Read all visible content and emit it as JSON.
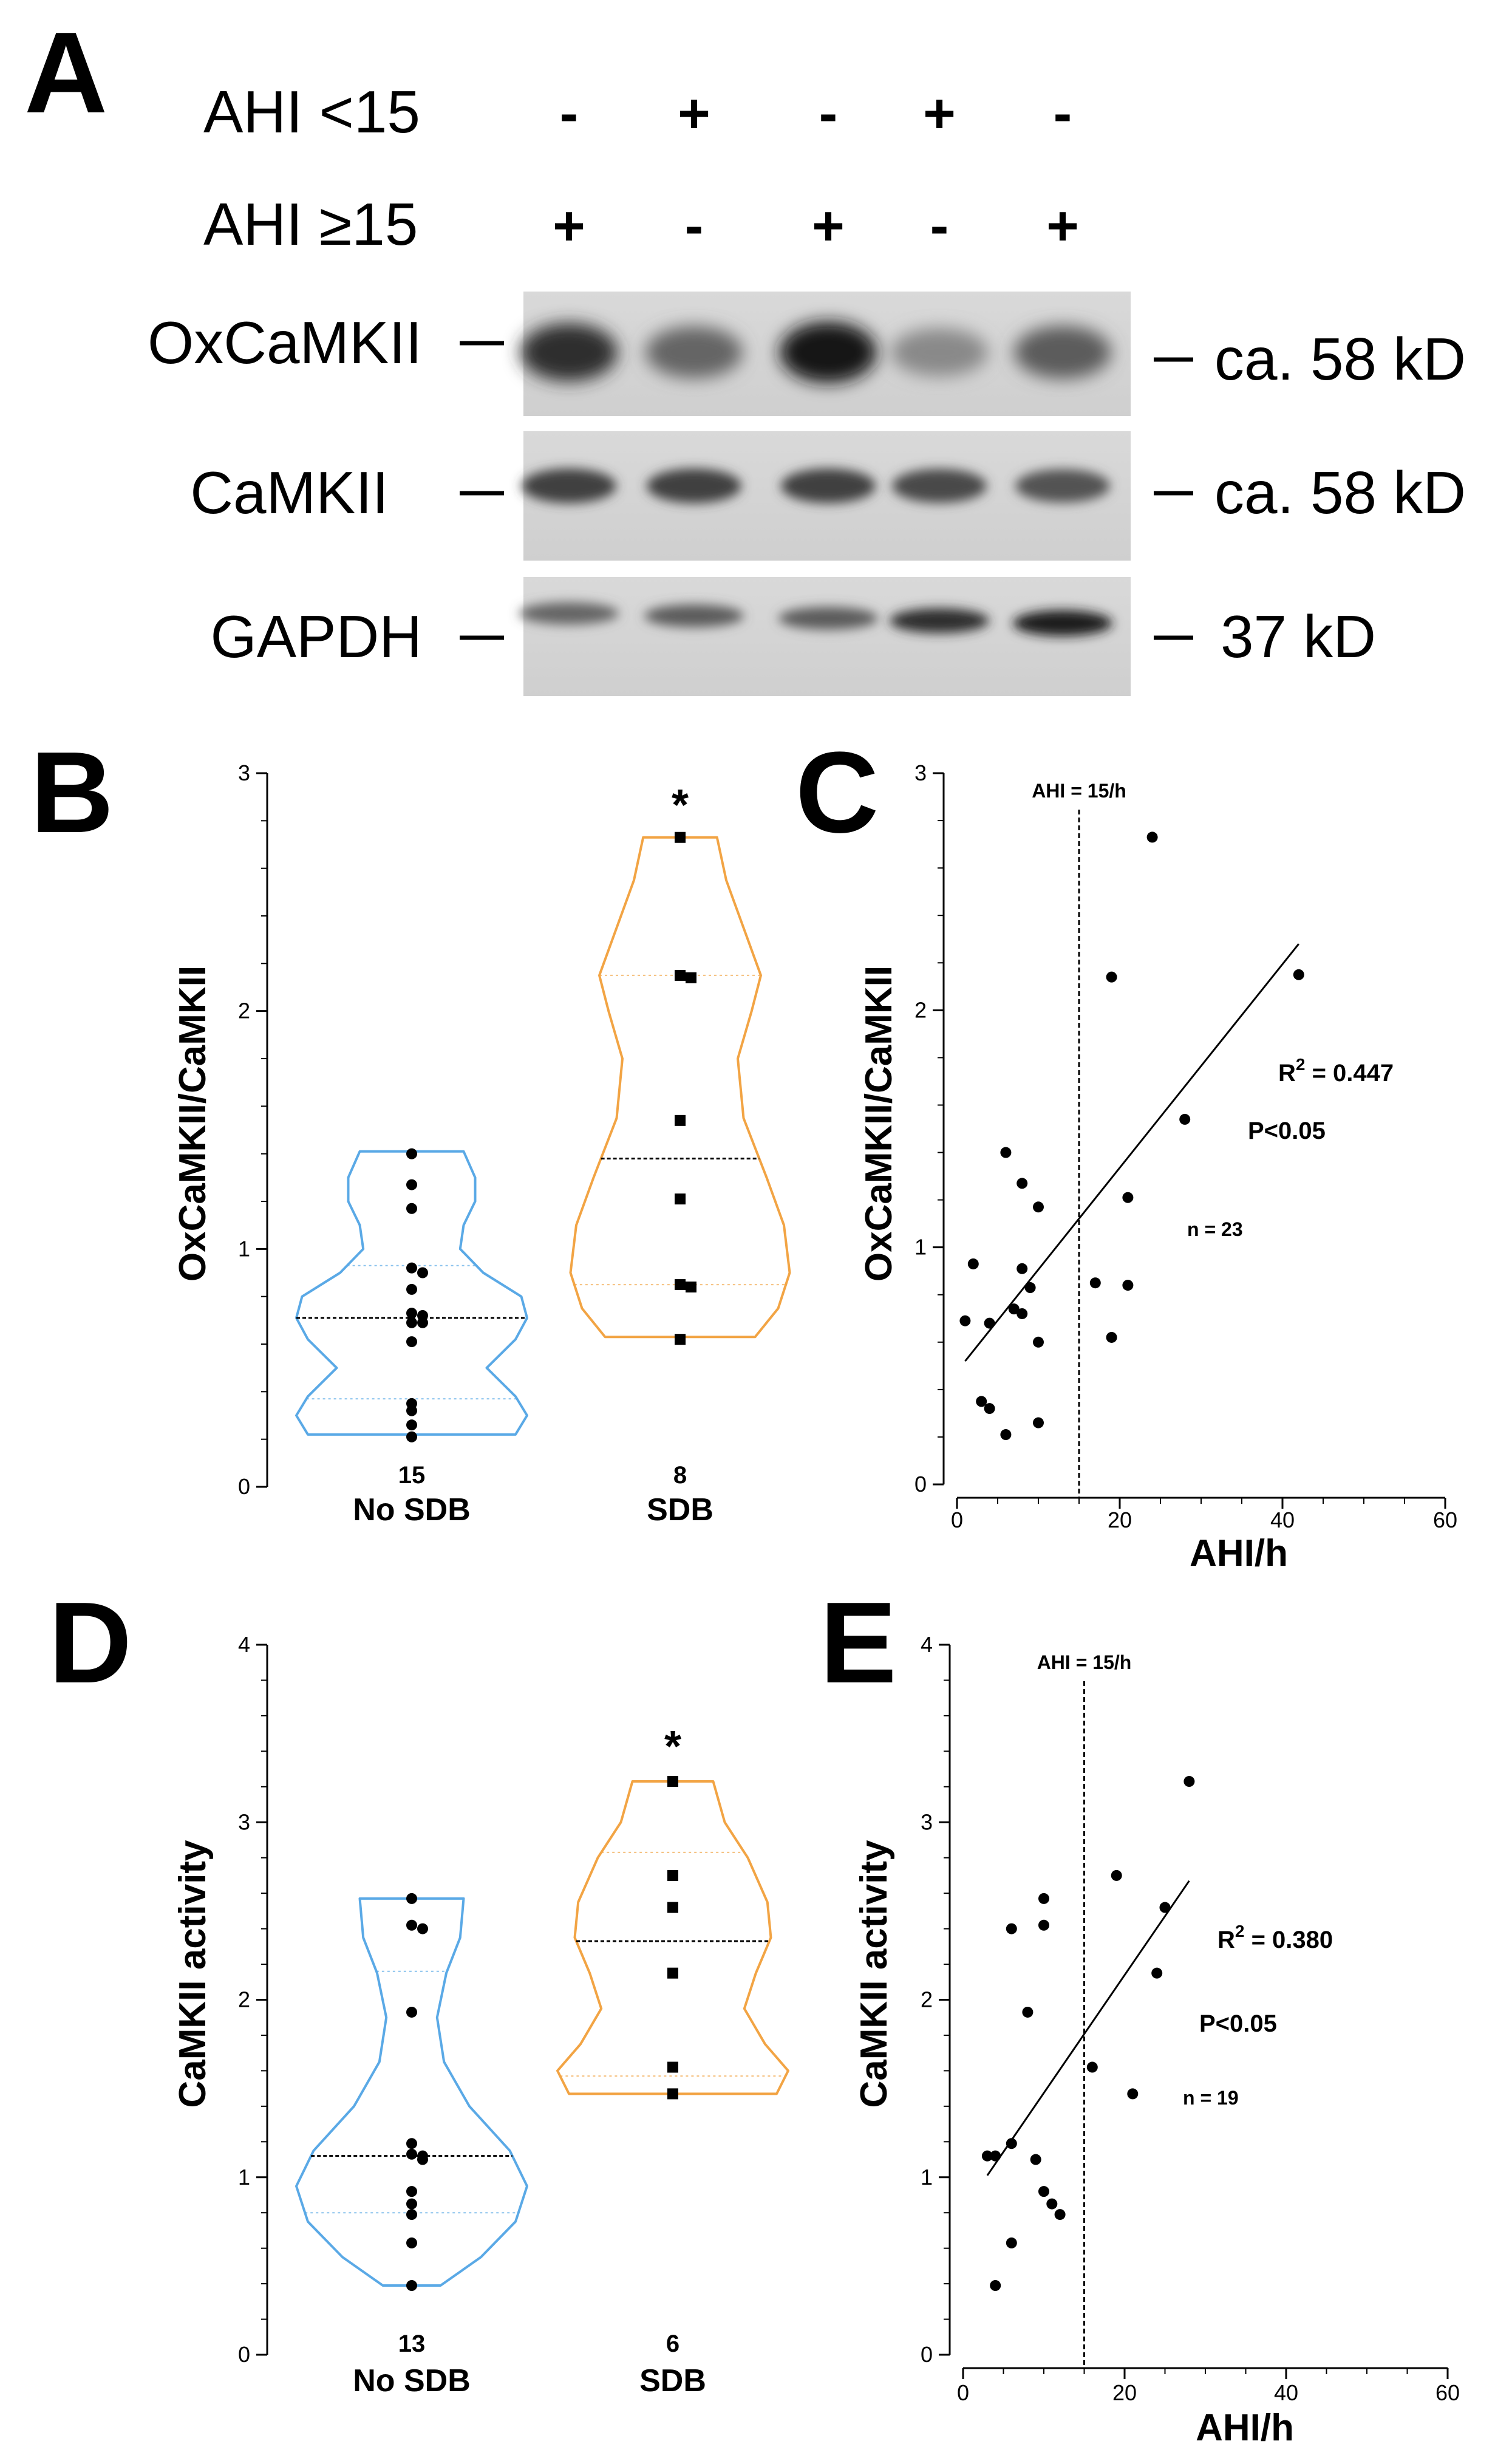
{
  "panel_A": {
    "letter": "A",
    "rows": [
      {
        "label": "AHI <15",
        "signs": [
          "-",
          "+",
          "-",
          "+",
          "-"
        ]
      },
      {
        "label": "AHI ≥15",
        "signs": [
          "+",
          "-",
          "+",
          "-",
          "+"
        ]
      }
    ],
    "bands": [
      {
        "label": "OxCaMKII",
        "size": "ca. 58 kD",
        "intensities": [
          0.85,
          0.55,
          1.0,
          0.35,
          0.6
        ]
      },
      {
        "label": "CaMKII",
        "size": "ca. 58 kD",
        "intensities": [
          0.75,
          0.75,
          0.75,
          0.7,
          0.65
        ]
      },
      {
        "label": "GAPDH",
        "size": "37 kD",
        "intensities": [
          0.55,
          0.6,
          0.6,
          0.85,
          0.95
        ]
      }
    ]
  },
  "chart_data": [
    {
      "panel": "B",
      "type": "violin",
      "ylabel": "OxCaMKII/CaMKII",
      "ylim": [
        0,
        3
      ],
      "yticks": [
        "0",
        "1",
        "2",
        "3"
      ],
      "star": "*",
      "groups": [
        {
          "name": "No SDB",
          "n": "15",
          "color": "#5aa9e6",
          "marker": "circle",
          "values": [
            1.4,
            1.27,
            1.17,
            0.92,
            0.9,
            0.83,
            0.73,
            0.72,
            0.69,
            0.69,
            0.61,
            0.35,
            0.32,
            0.26,
            0.21
          ],
          "median": 0.71,
          "q1": 0.37,
          "q3": 0.93,
          "density": [
            [
              0.22,
              0.9
            ],
            [
              0.3,
              1.0
            ],
            [
              0.38,
              0.9
            ],
            [
              0.5,
              0.65
            ],
            [
              0.62,
              0.9
            ],
            [
              0.71,
              1.0
            ],
            [
              0.8,
              0.95
            ],
            [
              0.9,
              0.62
            ],
            [
              1.0,
              0.42
            ],
            [
              1.1,
              0.45
            ],
            [
              1.2,
              0.55
            ],
            [
              1.3,
              0.55
            ],
            [
              1.41,
              0.45
            ]
          ]
        },
        {
          "name": "SDB",
          "n": "8",
          "color": "#f2a444",
          "marker": "square",
          "values": [
            2.73,
            2.15,
            2.14,
            1.54,
            1.21,
            0.85,
            0.84,
            0.62
          ],
          "median": 1.38,
          "q1": 0.85,
          "q3": 2.15,
          "density": [
            [
              0.63,
              0.65
            ],
            [
              0.75,
              0.85
            ],
            [
              0.9,
              0.95
            ],
            [
              1.1,
              0.9
            ],
            [
              1.3,
              0.75
            ],
            [
              1.55,
              0.55
            ],
            [
              1.8,
              0.5
            ],
            [
              2.0,
              0.62
            ],
            [
              2.15,
              0.7
            ],
            [
              2.35,
              0.55
            ],
            [
              2.55,
              0.4
            ],
            [
              2.73,
              0.32
            ]
          ]
        }
      ]
    },
    {
      "panel": "C",
      "type": "scatter",
      "ylabel": "OxCaMKII/CaMKII",
      "xlabel": "AHI/h",
      "xlim": [
        0,
        60
      ],
      "ylim": [
        0,
        3
      ],
      "xticks": [
        "0",
        "20",
        "40",
        "60"
      ],
      "yticks": [
        "0",
        "1",
        "2",
        "3"
      ],
      "threshold": {
        "x": 15,
        "label": "AHI = 15/h"
      },
      "regression": {
        "x1": 1,
        "y1": 0.52,
        "x2": 42,
        "y2": 2.28
      },
      "annotations": {
        "r2_prefix": "R",
        "r2_sup": "2",
        "r2_suffix": " = 0.447",
        "p": "P<0.05",
        "n": "n = 23"
      },
      "points": [
        [
          1,
          0.69
        ],
        [
          2,
          0.93
        ],
        [
          3,
          0.35
        ],
        [
          4,
          0.68
        ],
        [
          4,
          0.32
        ],
        [
          6,
          1.4
        ],
        [
          6,
          0.21
        ],
        [
          7,
          0.74
        ],
        [
          8,
          1.27
        ],
        [
          8,
          0.91
        ],
        [
          8,
          0.72
        ],
        [
          9,
          0.83
        ],
        [
          10,
          1.17
        ],
        [
          10,
          0.6
        ],
        [
          10,
          0.26
        ],
        [
          17,
          0.85
        ],
        [
          19,
          2.14
        ],
        [
          19,
          0.62
        ],
        [
          21,
          1.21
        ],
        [
          21,
          0.84
        ],
        [
          24,
          2.73
        ],
        [
          28,
          1.54
        ],
        [
          42,
          2.15
        ]
      ]
    },
    {
      "panel": "D",
      "type": "violin",
      "ylabel": "CaMKII activity",
      "ylim": [
        0,
        4
      ],
      "yticks": [
        "0",
        "1",
        "2",
        "3",
        "4"
      ],
      "star": "*",
      "groups": [
        {
          "name": "No SDB",
          "n": "13",
          "color": "#5aa9e6",
          "marker": "circle",
          "values": [
            2.57,
            2.42,
            2.4,
            1.93,
            1.19,
            1.13,
            1.12,
            1.1,
            0.92,
            0.85,
            0.79,
            0.63,
            0.39
          ],
          "median": 1.12,
          "q1": 0.8,
          "q3": 2.16,
          "density": [
            [
              0.39,
              0.25
            ],
            [
              0.55,
              0.6
            ],
            [
              0.75,
              0.9
            ],
            [
              0.95,
              1.0
            ],
            [
              1.15,
              0.85
            ],
            [
              1.4,
              0.5
            ],
            [
              1.65,
              0.28
            ],
            [
              1.9,
              0.22
            ],
            [
              2.15,
              0.3
            ],
            [
              2.35,
              0.42
            ],
            [
              2.57,
              0.45
            ]
          ]
        },
        {
          "name": "SDB",
          "n": "6",
          "color": "#f2a444",
          "marker": "square",
          "values": [
            3.23,
            2.7,
            2.52,
            2.15,
            1.62,
            1.47
          ],
          "median": 2.33,
          "q1": 1.57,
          "q3": 2.83,
          "density": [
            [
              1.47,
              0.9
            ],
            [
              1.6,
              1.0
            ],
            [
              1.75,
              0.8
            ],
            [
              1.95,
              0.62
            ],
            [
              2.15,
              0.72
            ],
            [
              2.35,
              0.85
            ],
            [
              2.55,
              0.82
            ],
            [
              2.8,
              0.65
            ],
            [
              3.0,
              0.45
            ],
            [
              3.23,
              0.35
            ]
          ]
        }
      ]
    },
    {
      "panel": "E",
      "type": "scatter",
      "ylabel": "CaMKII activity",
      "xlabel": "AHI/h",
      "xlim": [
        0,
        60
      ],
      "ylim": [
        0,
        4
      ],
      "xticks": [
        "0",
        "20",
        "40",
        "60"
      ],
      "yticks": [
        "0",
        "1",
        "2",
        "3",
        "4"
      ],
      "threshold": {
        "x": 15,
        "label": "AHI = 15/h"
      },
      "regression": {
        "x1": 3,
        "y1": 1.01,
        "x2": 28,
        "y2": 2.67
      },
      "annotations": {
        "r2_prefix": "R",
        "r2_sup": "2",
        "r2_suffix": " = 0.380",
        "p": "P<0.05",
        "n": "n = 19"
      },
      "points": [
        [
          3,
          1.12
        ],
        [
          4,
          1.12
        ],
        [
          4,
          0.39
        ],
        [
          6,
          1.19
        ],
        [
          6,
          0.63
        ],
        [
          6,
          2.4
        ],
        [
          8,
          1.93
        ],
        [
          9,
          1.1
        ],
        [
          10,
          2.57
        ],
        [
          10,
          2.42
        ],
        [
          10,
          0.92
        ],
        [
          11,
          0.85
        ],
        [
          12,
          0.79
        ],
        [
          16,
          1.62
        ],
        [
          19,
          2.7
        ],
        [
          21,
          1.47
        ],
        [
          24,
          2.15
        ],
        [
          25,
          2.52
        ],
        [
          28,
          3.23
        ]
      ]
    }
  ]
}
